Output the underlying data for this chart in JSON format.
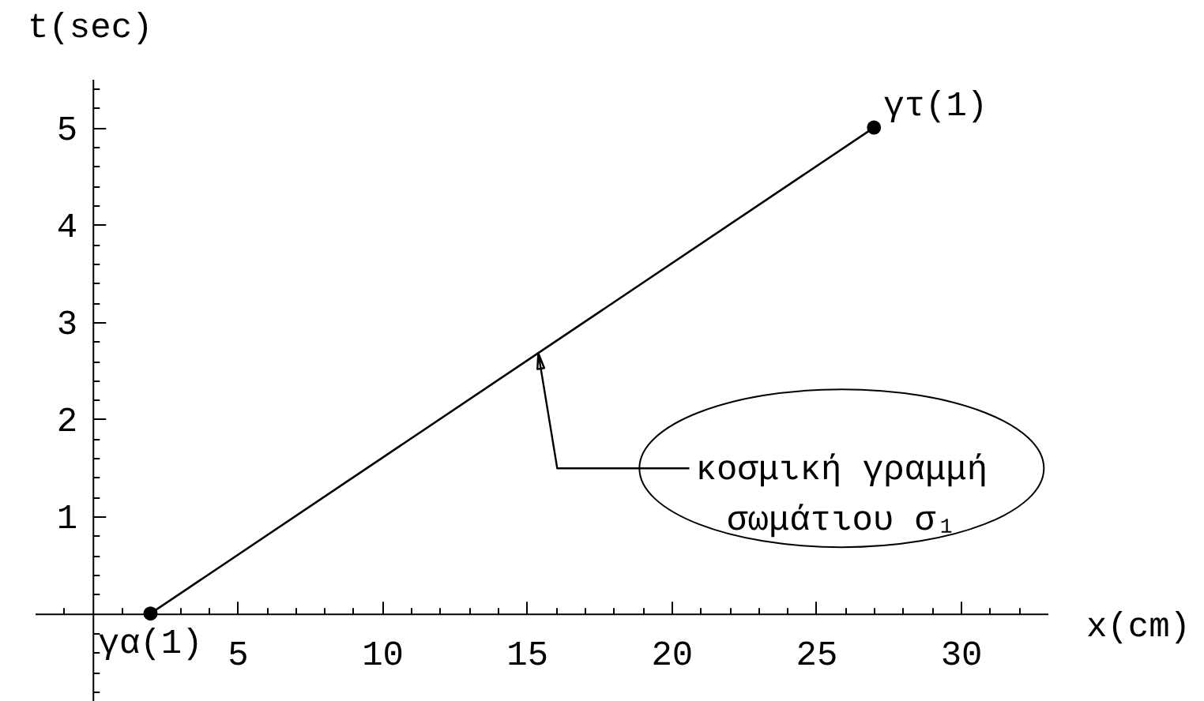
{
  "chart_data": {
    "type": "line",
    "xlabel": "x(cm)",
    "ylabel": "t(sec)",
    "xlim": [
      -2,
      33
    ],
    "ylim": [
      -0.9,
      5.5
    ],
    "xticks": [
      {
        "value": -1,
        "label": null
      },
      {
        "value": 1,
        "label": null
      },
      {
        "value": 2,
        "label": null
      },
      {
        "value": 3,
        "label": null
      },
      {
        "value": 4,
        "label": null
      },
      5,
      {
        "value": 6,
        "label": null
      },
      {
        "value": 7,
        "label": null
      },
      {
        "value": 8,
        "label": null
      },
      {
        "value": 9,
        "label": null
      },
      10,
      {
        "value": 11,
        "label": null
      },
      {
        "value": 12,
        "label": null
      },
      {
        "value": 13,
        "label": null
      },
      {
        "value": 14,
        "label": null
      },
      15,
      {
        "value": 16,
        "label": null
      },
      {
        "value": 17,
        "label": null
      },
      {
        "value": 18,
        "label": null
      },
      {
        "value": 19,
        "label": null
      },
      20,
      {
        "value": 21,
        "label": null
      },
      {
        "value": 22,
        "label": null
      },
      {
        "value": 23,
        "label": null
      },
      {
        "value": 24,
        "label": null
      },
      25,
      {
        "value": 26,
        "label": null
      },
      {
        "value": 27,
        "label": null
      },
      {
        "value": 28,
        "label": null
      },
      {
        "value": 29,
        "label": null
      },
      30,
      {
        "value": 31,
        "label": null
      },
      {
        "value": 32,
        "label": null
      }
    ],
    "yticks": [
      {
        "value": -0.8,
        "label": null
      },
      {
        "value": -0.6,
        "label": null
      },
      {
        "value": -0.4,
        "label": null
      },
      {
        "value": -0.2,
        "label": null
      },
      {
        "value": 0.2,
        "label": null
      },
      {
        "value": 0.4,
        "label": null
      },
      {
        "value": 0.6,
        "label": null
      },
      {
        "value": 0.8,
        "label": null
      },
      1,
      {
        "value": 1.2,
        "label": null
      },
      {
        "value": 1.4,
        "label": null
      },
      {
        "value": 1.6,
        "label": null
      },
      {
        "value": 1.8,
        "label": null
      },
      2,
      {
        "value": 2.2,
        "label": null
      },
      {
        "value": 2.4,
        "label": null
      },
      {
        "value": 2.6,
        "label": null
      },
      {
        "value": 2.8,
        "label": null
      },
      3,
      {
        "value": 3.2,
        "label": null
      },
      {
        "value": 3.4,
        "label": null
      },
      {
        "value": 3.6,
        "label": null
      },
      {
        "value": 3.8,
        "label": null
      },
      4,
      {
        "value": 4.2,
        "label": null
      },
      {
        "value": 4.4,
        "label": null
      },
      {
        "value": 4.6,
        "label": null
      },
      {
        "value": 4.8,
        "label": null
      },
      5,
      {
        "value": 5.2,
        "label": null
      },
      {
        "value": 5.4,
        "label": null
      }
    ],
    "marker": "circle",
    "series": [
      {
        "color": "#000000",
        "x": [
          2,
          27
        ],
        "values": [
          0,
          5
        ]
      }
    ],
    "annotations": [
      {
        "text": "γα(1)",
        "x": 2,
        "y": 0
      },
      {
        "text": "γτ(1)",
        "x": 27,
        "y": 5
      },
      {
        "text": "κοσμική γραμμή\nσωμάτιου σ₁",
        "x": 15.4,
        "y": 2.68
      }
    ]
  }
}
